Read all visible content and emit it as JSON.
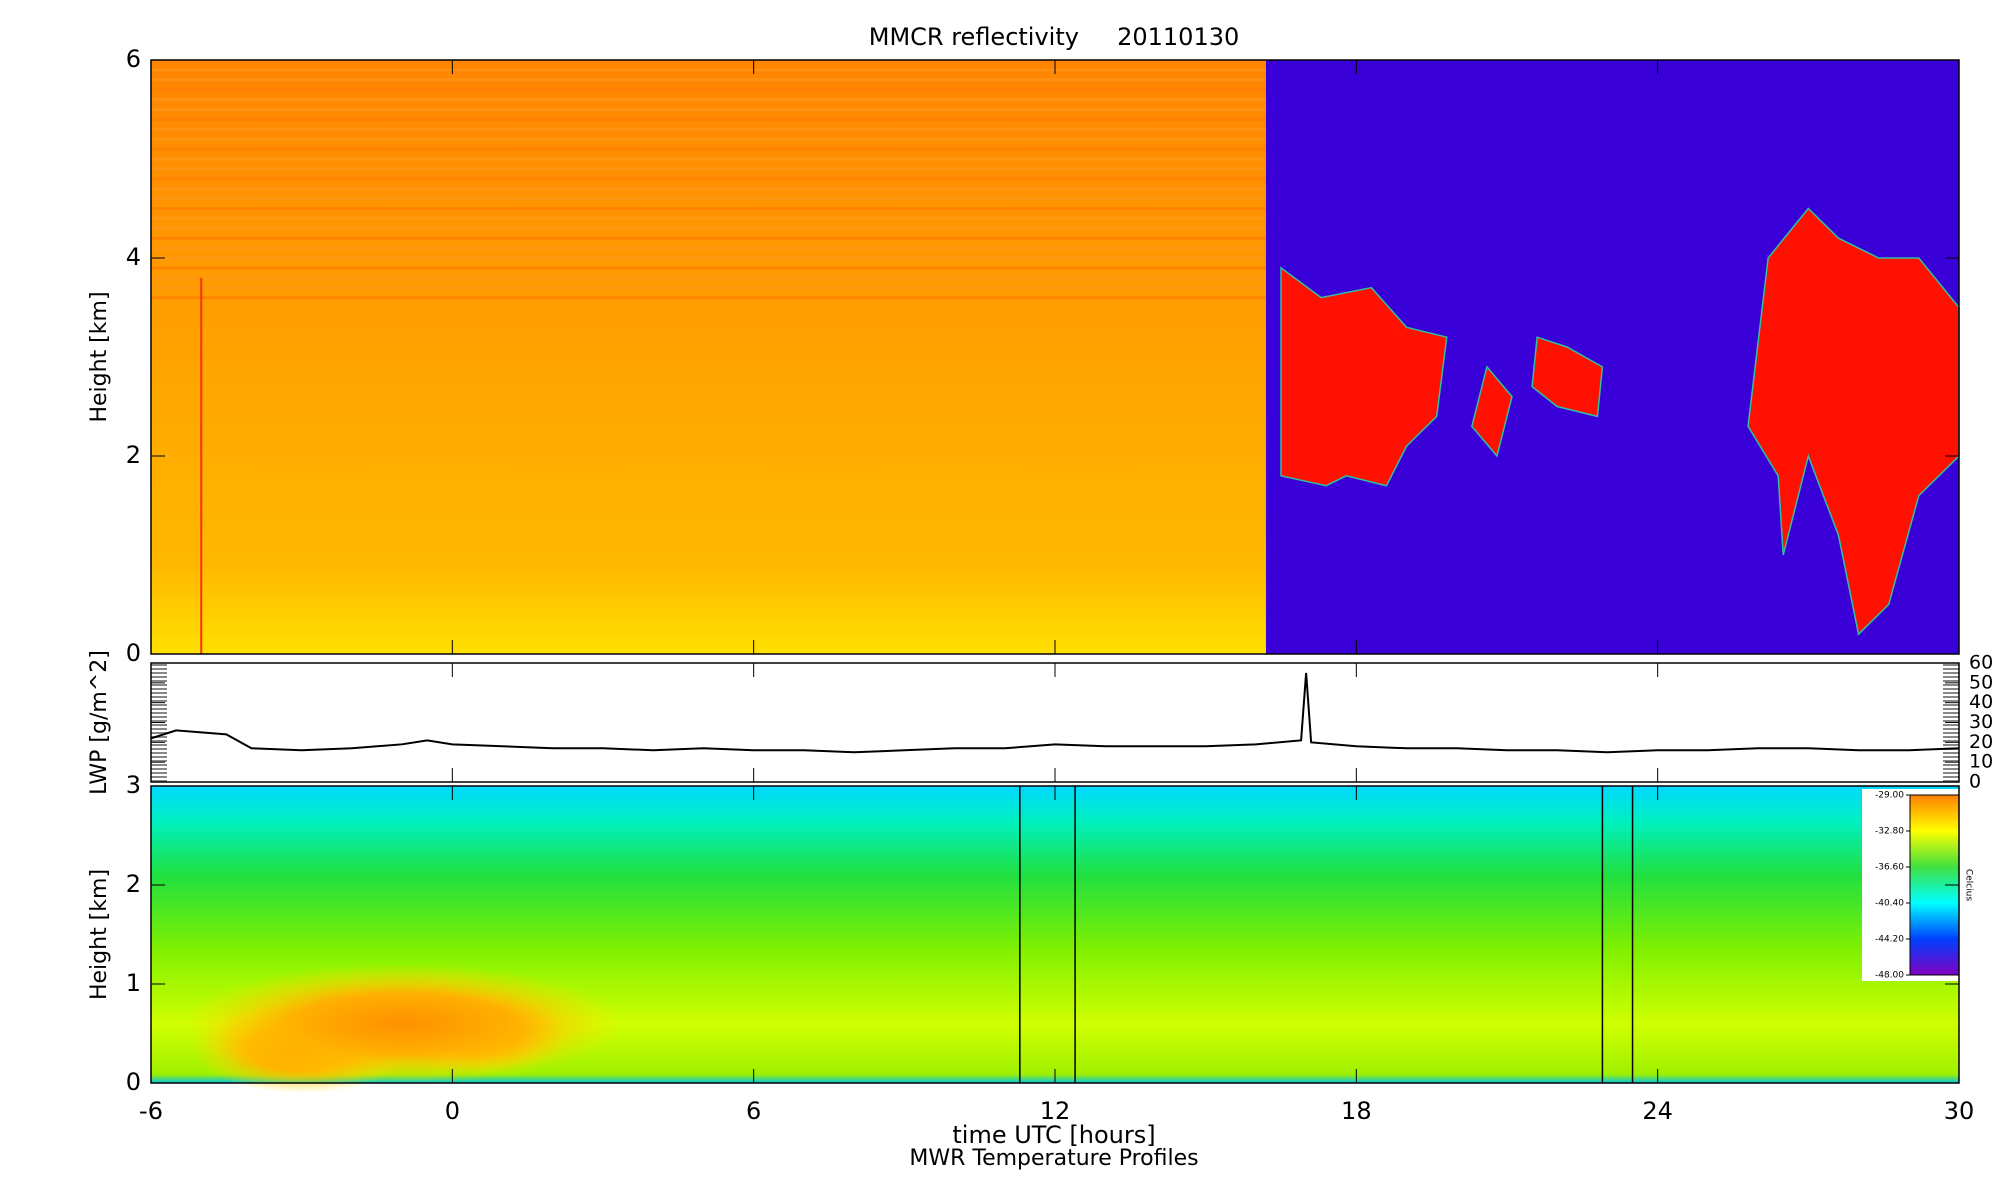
{
  "chart_data": [
    {
      "type": "heatmap",
      "title": "MMCR reflectivity     20110130",
      "y_label": "Height [km]",
      "xlim": [
        -6,
        30
      ],
      "ylim": [
        0,
        6
      ],
      "yticks": [
        0,
        2,
        4,
        6
      ]
    },
    {
      "type": "line",
      "y_label": "LWP [g/m^2]",
      "xlim": [
        -6,
        30
      ],
      "ylim": [
        0,
        60
      ],
      "yticks": [
        0,
        10,
        20,
        30,
        40,
        50,
        60
      ],
      "series": [
        {
          "color": "#000000",
          "x": [
            -6,
            -5.5,
            -5,
            -4.5,
            -4,
            -3,
            -2,
            -1,
            -0.5,
            0,
            1,
            2,
            3,
            4,
            5,
            6,
            7,
            8,
            9,
            10,
            11,
            12,
            13,
            14,
            15,
            16,
            16.9,
            17,
            17.1,
            18,
            19,
            20,
            21,
            22,
            23,
            24,
            25,
            26,
            27,
            28,
            29,
            30
          ],
          "values": [
            22,
            26,
            25,
            24,
            17,
            16,
            17,
            19,
            21,
            19,
            18,
            17,
            17,
            16,
            17,
            16,
            16,
            15,
            16,
            17,
            17,
            19,
            18,
            18,
            18,
            19,
            21,
            55,
            20,
            18,
            17,
            17,
            16,
            16,
            15,
            16,
            16,
            17,
            17,
            16,
            16,
            17
          ]
        }
      ]
    },
    {
      "type": "contour",
      "y_label": "Height [km]",
      "x_label": "time UTC [hours]",
      "subtitle": "MWR Temperature Profiles",
      "xlim": [
        -6,
        30
      ],
      "xticks": [
        -6,
        0,
        6,
        12,
        18,
        24,
        30
      ],
      "ylim": [
        0,
        3
      ],
      "yticks": [
        0,
        1,
        2,
        3
      ],
      "vlines": [
        11.3,
        12.4,
        22.9,
        23.5
      ],
      "colorbar": {
        "label": "Celcius",
        "clim": [
          -48,
          -29
        ],
        "ticks": [
          {
            "value": -29,
            "label": "-29.00"
          },
          {
            "value": -32.8,
            "label": "-32.80"
          },
          {
            "value": -36.6,
            "label": "-36.60"
          },
          {
            "value": -40.4,
            "label": "-40.40"
          },
          {
            "value": -44.2,
            "label": "-44.20"
          },
          {
            "value": -48,
            "label": "-48.00"
          }
        ]
      }
    }
  ]
}
